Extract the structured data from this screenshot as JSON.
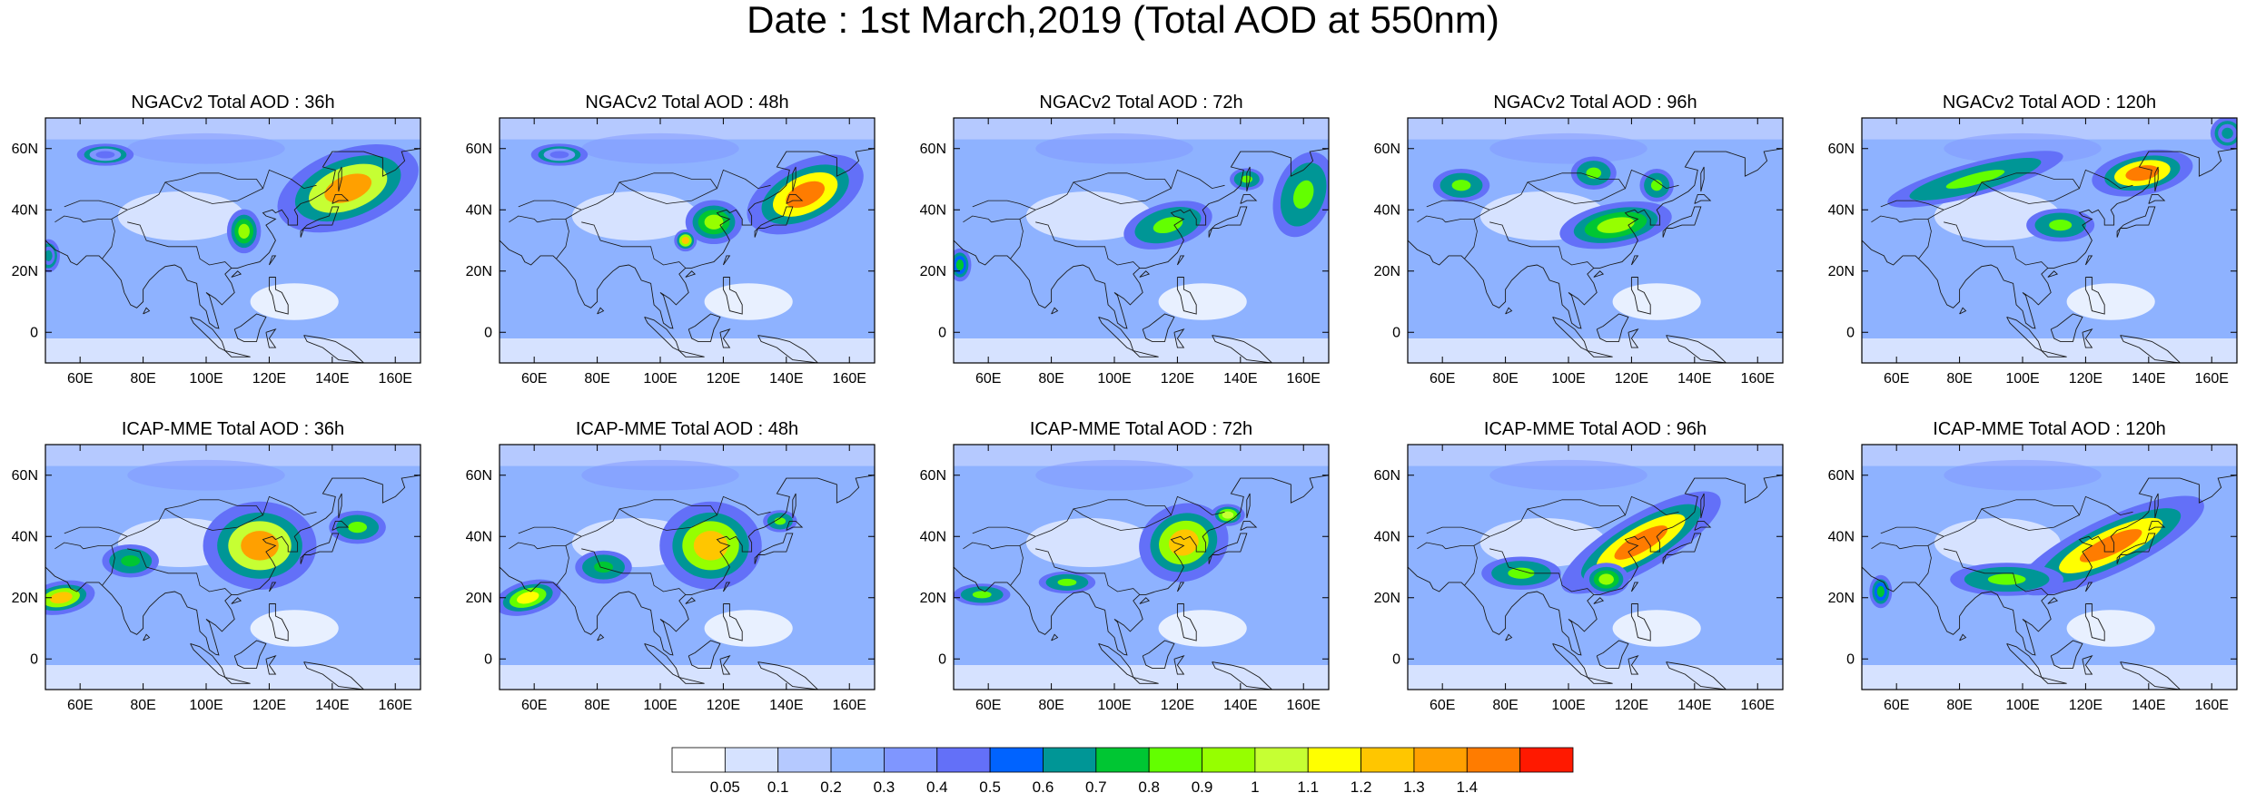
{
  "title": "Date : 1st March,2019 (Total AOD at 550nm)",
  "map_extent": {
    "lon": [
      49,
      168
    ],
    "lat": [
      -10,
      70
    ]
  },
  "x_ticks": [
    "60E",
    "80E",
    "100E",
    "120E",
    "140E",
    "160E"
  ],
  "x_tick_values": [
    60,
    80,
    100,
    120,
    140,
    160
  ],
  "y_ticks": [
    "60N",
    "40N",
    "20N",
    "0"
  ],
  "y_tick_values": [
    60,
    40,
    20,
    0
  ],
  "rows": [
    {
      "model": "NGACv2",
      "panels": [
        {
          "title": "NGACv2 Total AOD : 36h",
          "hotspots": [
            {
              "lon": 145,
              "lat": 47,
              "rx": 13,
              "ry": 7,
              "v": 1.3,
              "rot": -20
            },
            {
              "lon": 112,
              "lat": 33,
              "rx": 3,
              "ry": 4,
              "v": 0.9,
              "rot": 0
            },
            {
              "lon": 68,
              "lat": 58,
              "rx": 5,
              "ry": 2,
              "v": 0.45,
              "rot": 0
            },
            {
              "lon": 50,
              "lat": 25,
              "rx": 2,
              "ry": 3,
              "v": 0.6,
              "rot": 0
            }
          ]
        },
        {
          "title": "NGACv2 Total AOD : 48h",
          "hotspots": [
            {
              "lon": 146,
              "lat": 45,
              "rx": 11,
              "ry": 6,
              "v": 1.4,
              "rot": -25
            },
            {
              "lon": 117,
              "lat": 36,
              "rx": 5,
              "ry": 4,
              "v": 0.9,
              "rot": 0
            },
            {
              "lon": 108,
              "lat": 30,
              "rx": 2,
              "ry": 2,
              "v": 1.2,
              "rot": 0
            },
            {
              "lon": 68,
              "lat": 58,
              "rx": 5,
              "ry": 2,
              "v": 0.45,
              "rot": 0
            }
          ]
        },
        {
          "title": "NGACv2 Total AOD : 72h",
          "hotspots": [
            {
              "lon": 117,
              "lat": 35,
              "rx": 8,
              "ry": 4,
              "v": 0.85,
              "rot": -15
            },
            {
              "lon": 160,
              "lat": 45,
              "rx": 5,
              "ry": 8,
              "v": 0.8,
              "rot": 20
            },
            {
              "lon": 142,
              "lat": 50,
              "rx": 3,
              "ry": 2,
              "v": 0.8,
              "rot": 0
            },
            {
              "lon": 51,
              "lat": 22,
              "rx": 2,
              "ry": 3,
              "v": 0.7,
              "rot": 0
            }
          ]
        },
        {
          "title": "NGACv2 Total AOD : 96h",
          "hotspots": [
            {
              "lon": 115,
              "lat": 35,
              "rx": 10,
              "ry": 4,
              "v": 0.9,
              "rot": -10
            },
            {
              "lon": 66,
              "lat": 48,
              "rx": 5,
              "ry": 3,
              "v": 0.8,
              "rot": 0
            },
            {
              "lon": 108,
              "lat": 52,
              "rx": 4,
              "ry": 3,
              "v": 0.8,
              "rot": 0
            },
            {
              "lon": 128,
              "lat": 48,
              "rx": 3,
              "ry": 3,
              "v": 0.85,
              "rot": 0
            }
          ]
        },
        {
          "title": "NGACv2 Total AOD : 120h",
          "hotspots": [
            {
              "lon": 138,
              "lat": 52,
              "rx": 9,
              "ry": 4,
              "v": 1.4,
              "rot": -10
            },
            {
              "lon": 85,
              "lat": 50,
              "rx": 16,
              "ry": 3,
              "v": 0.8,
              "rot": -15
            },
            {
              "lon": 112,
              "lat": 35,
              "rx": 6,
              "ry": 3,
              "v": 0.85,
              "rot": 0
            },
            {
              "lon": 165,
              "lat": 65,
              "rx": 3,
              "ry": 3,
              "v": 0.6,
              "rot": 0
            }
          ]
        }
      ]
    },
    {
      "model": "ICAP-MME",
      "panels": [
        {
          "title": "ICAP-MME Total AOD : 36h",
          "hotspots": [
            {
              "lon": 117,
              "lat": 37,
              "rx": 10,
              "ry": 8,
              "v": 1.3,
              "rot": 0
            },
            {
              "lon": 54,
              "lat": 20,
              "rx": 6,
              "ry": 3,
              "v": 1.2,
              "rot": -10
            },
            {
              "lon": 76,
              "lat": 32,
              "rx": 5,
              "ry": 3,
              "v": 0.75,
              "rot": 0
            },
            {
              "lon": 148,
              "lat": 43,
              "rx": 5,
              "ry": 3,
              "v": 0.8,
              "rot": 0
            }
          ]
        },
        {
          "title": "ICAP-MME Total AOD : 48h",
          "hotspots": [
            {
              "lon": 116,
              "lat": 37,
              "rx": 9,
              "ry": 8,
              "v": 1.2,
              "rot": 0
            },
            {
              "lon": 58,
              "lat": 20,
              "rx": 6,
              "ry": 3,
              "v": 1.1,
              "rot": -15
            },
            {
              "lon": 82,
              "lat": 30,
              "rx": 5,
              "ry": 3,
              "v": 0.75,
              "rot": 0
            },
            {
              "lon": 138,
              "lat": 45,
              "rx": 3,
              "ry": 2,
              "v": 0.8,
              "rot": 0
            }
          ]
        },
        {
          "title": "ICAP-MME Total AOD : 72h",
          "hotspots": [
            {
              "lon": 122,
              "lat": 38,
              "rx": 8,
              "ry": 7,
              "v": 1.2,
              "rot": -20
            },
            {
              "lon": 58,
              "lat": 21,
              "rx": 5,
              "ry": 2,
              "v": 0.8,
              "rot": 0
            },
            {
              "lon": 85,
              "lat": 25,
              "rx": 5,
              "ry": 2,
              "v": 0.85,
              "rot": 0
            },
            {
              "lon": 136,
              "lat": 47,
              "rx": 3,
              "ry": 2,
              "v": 1.0,
              "rot": 0
            }
          ]
        },
        {
          "title": "ICAP-MME Total AOD : 96h",
          "hotspots": [
            {
              "lon": 123,
              "lat": 38,
              "rx": 16,
              "ry": 5,
              "v": 1.4,
              "rot": -30
            },
            {
              "lon": 85,
              "lat": 28,
              "rx": 7,
              "ry": 3,
              "v": 0.85,
              "rot": 0
            },
            {
              "lon": 112,
              "lat": 26,
              "rx": 4,
              "ry": 3,
              "v": 0.9,
              "rot": 0
            }
          ]
        },
        {
          "title": "ICAP-MME Total AOD : 120h",
          "hotspots": [
            {
              "lon": 128,
              "lat": 37,
              "rx": 18,
              "ry": 5,
              "v": 1.4,
              "rot": -25
            },
            {
              "lon": 95,
              "lat": 26,
              "rx": 10,
              "ry": 3,
              "v": 0.85,
              "rot": 0
            },
            {
              "lon": 55,
              "lat": 22,
              "rx": 2,
              "ry": 3,
              "v": 0.7,
              "rot": 0
            }
          ]
        }
      ]
    }
  ],
  "colorbar": {
    "colors": [
      "#ffffff",
      "#d6e2ff",
      "#b5c9ff",
      "#8eb2ff",
      "#7f96ff",
      "#6370f8",
      "#0063ff",
      "#009696",
      "#00c633",
      "#63ff00",
      "#96ff00",
      "#c6ff33",
      "#ffff00",
      "#ffc600",
      "#ffa000",
      "#ff7c00",
      "#ff1900"
    ],
    "labels": [
      "0.05",
      "0.1",
      "0.2",
      "0.3",
      "0.4",
      "0.5",
      "0.6",
      "0.7",
      "0.8",
      "0.9",
      "1",
      "1.1",
      "1.2",
      "1.3",
      "1.4"
    ]
  }
}
